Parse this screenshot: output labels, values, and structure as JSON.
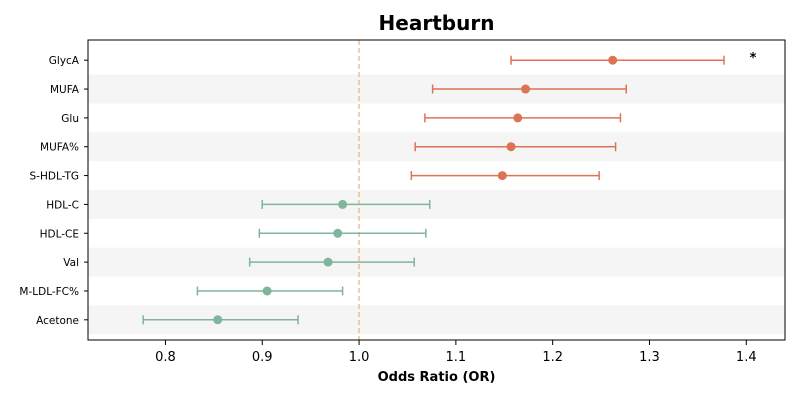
{
  "chart_data": {
    "type": "forest",
    "title": "Heartburn",
    "xlabel": "Odds Ratio (OR)",
    "ylabel": "",
    "xlim": [
      0.72,
      1.44
    ],
    "xticks": [
      0.8,
      0.9,
      1.0,
      1.1,
      1.2,
      1.3,
      1.4
    ],
    "xtick_labels": [
      "0.8",
      "0.9",
      "1.0",
      "1.1",
      "1.2",
      "1.3",
      "1.4"
    ],
    "reference_line": 1.0,
    "reference_line_color": "#f0c08a",
    "alternating_row_color": "#f5f5f5",
    "grid": false,
    "colors": {
      "risk": "#dd7355",
      "protective": "#7fb59c"
    },
    "rows": [
      {
        "label": "GlycA",
        "or": 1.262,
        "ci_low": 1.157,
        "ci_high": 1.377,
        "group": "risk",
        "annotation": "*"
      },
      {
        "label": "MUFA",
        "or": 1.172,
        "ci_low": 1.076,
        "ci_high": 1.276,
        "group": "risk",
        "annotation": ""
      },
      {
        "label": "Glu",
        "or": 1.164,
        "ci_low": 1.068,
        "ci_high": 1.27,
        "group": "risk",
        "annotation": ""
      },
      {
        "label": "MUFA%",
        "or": 1.157,
        "ci_low": 1.058,
        "ci_high": 1.265,
        "group": "risk",
        "annotation": ""
      },
      {
        "label": "S-HDL-TG",
        "or": 1.148,
        "ci_low": 1.054,
        "ci_high": 1.248,
        "group": "risk",
        "annotation": ""
      },
      {
        "label": "HDL-C",
        "or": 0.983,
        "ci_low": 0.9,
        "ci_high": 1.073,
        "group": "protective",
        "annotation": ""
      },
      {
        "label": "HDL-CE",
        "or": 0.978,
        "ci_low": 0.897,
        "ci_high": 1.069,
        "group": "protective",
        "annotation": ""
      },
      {
        "label": "Val",
        "or": 0.968,
        "ci_low": 0.887,
        "ci_high": 1.057,
        "group": "protective",
        "annotation": ""
      },
      {
        "label": "M-LDL-FC%",
        "or": 0.905,
        "ci_low": 0.833,
        "ci_high": 0.983,
        "group": "protective",
        "annotation": ""
      },
      {
        "label": "Acetone",
        "or": 0.854,
        "ci_low": 0.777,
        "ci_high": 0.937,
        "group": "protective",
        "annotation": ""
      }
    ]
  }
}
